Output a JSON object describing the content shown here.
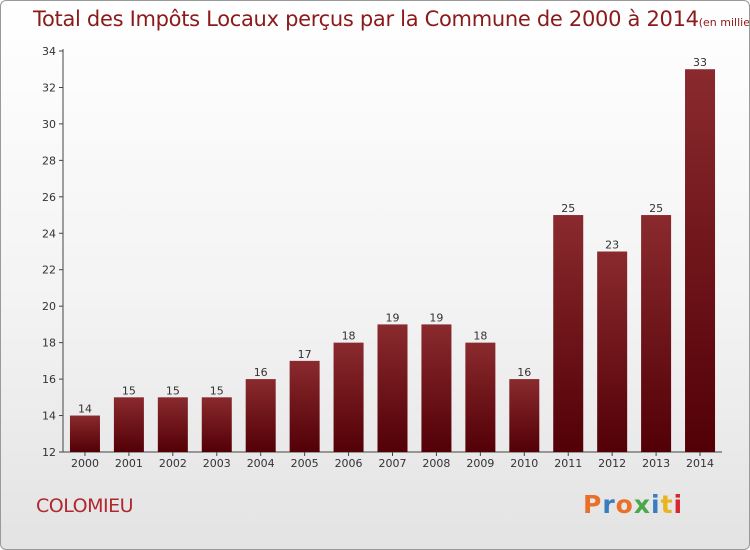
{
  "title": "Total des Impôts Locaux perçus par la Commune de 2000 à 2014",
  "unit": "(en milliers d'€)",
  "commune": "COLOMIEU",
  "logo": {
    "text": "Proxiti",
    "colors": [
      "#e8702a",
      "#3b7bbf",
      "#e8702a",
      "#4aa84a",
      "#3b7bbf",
      "#e8b520",
      "#d8282e"
    ]
  },
  "colors": {
    "title": "#8b1a1a",
    "bar_top": "#8a2a2e",
    "bar_bottom": "#520006",
    "axis": "#444444"
  },
  "chart_data": {
    "type": "bar",
    "categories": [
      "2000",
      "2001",
      "2002",
      "2003",
      "2004",
      "2005",
      "2006",
      "2007",
      "2008",
      "2009",
      "2010",
      "2011",
      "2012",
      "2013",
      "2014"
    ],
    "values": [
      14,
      15,
      15,
      15,
      16,
      17,
      18,
      19,
      19,
      18,
      16,
      25,
      23,
      25,
      33
    ],
    "data_labels": [
      "14",
      "15",
      "15",
      "15",
      "16",
      "17",
      "18",
      "19",
      "19",
      "18",
      "16",
      "25",
      "23",
      "25",
      "33"
    ],
    "ylim": [
      12,
      34
    ],
    "yticks": [
      12,
      14,
      16,
      18,
      20,
      22,
      24,
      26,
      28,
      30,
      32,
      34
    ],
    "grid": false,
    "legend": "none"
  }
}
